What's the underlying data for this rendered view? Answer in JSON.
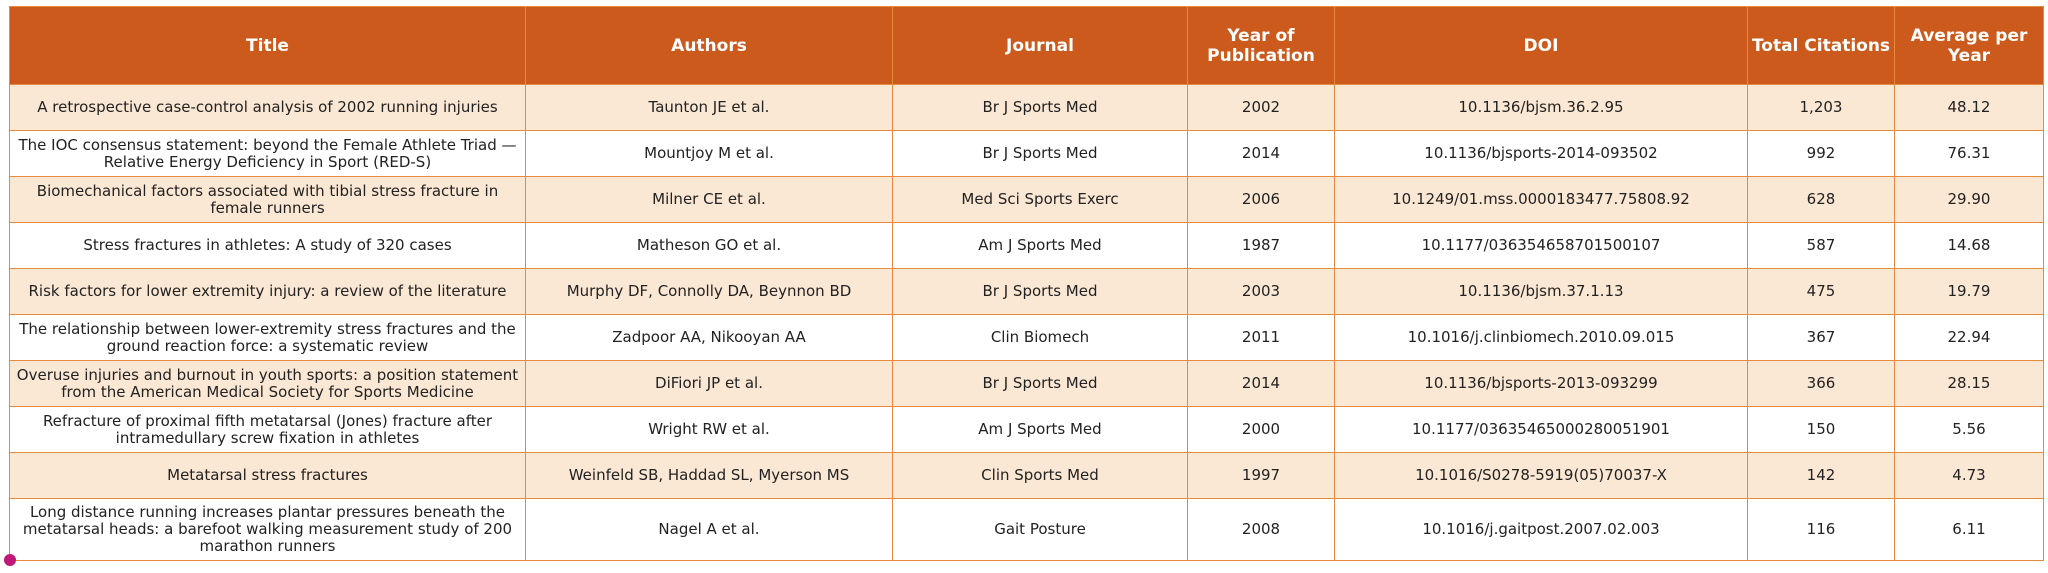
{
  "colors": {
    "header_bg": "#cc5a1c",
    "header_text": "#ffffff",
    "row_odd": "#fbe8d4",
    "row_even": "#ffffff",
    "border": "#e88a3c"
  },
  "chart_data": {
    "type": "table",
    "columns": [
      "Title",
      "Authors",
      "Journal",
      "Year of Publication",
      "DOI",
      "Total Citations",
      "Average per Year"
    ],
    "rows": [
      [
        "A retrospective case-control analysis of 2002 running injuries",
        "Taunton JE et al.",
        "Br J Sports Med",
        "2002",
        "10.1136/bjsm.36.2.95",
        "1,203",
        "48.12"
      ],
      [
        "The IOC consensus statement: beyond the Female Athlete Triad — Relative Energy Deficiency in Sport (RED-S)",
        "Mountjoy M et al.",
        "Br J Sports Med",
        "2014",
        "10.1136/bjsports-2014-093502",
        "992",
        "76.31"
      ],
      [
        "Biomechanical factors associated with tibial stress fracture in female runners",
        "Milner CE et al.",
        "Med Sci Sports Exerc",
        "2006",
        "10.1249/01.mss.0000183477.75808.92",
        "628",
        "29.90"
      ],
      [
        "Stress fractures in athletes: A study of 320 cases",
        "Matheson GO et al.",
        "Am J Sports Med",
        "1987",
        "10.1177/036354658701500107",
        "587",
        "14.68"
      ],
      [
        "Risk factors for lower extremity injury: a review of the literature",
        "Murphy DF, Connolly DA, Beynnon BD",
        "Br J Sports Med",
        "2003",
        "10.1136/bjsm.37.1.13",
        "475",
        "19.79"
      ],
      [
        "The relationship between lower-extremity stress fractures and the ground reaction force: a systematic review",
        "Zadpoor AA, Nikooyan AA",
        "Clin Biomech",
        "2011",
        "10.1016/j.clinbiomech.2010.09.015",
        "367",
        "22.94"
      ],
      [
        "Overuse injuries and burnout in youth sports: a position statement from the American Medical Society for Sports Medicine",
        "DiFiori JP et al.",
        "Br J Sports Med",
        "2014",
        "10.1136/bjsports-2013-093299",
        "366",
        "28.15"
      ],
      [
        "Refracture of proximal fifth metatarsal (Jones) fracture after intramedullary screw fixation in athletes",
        "Wright RW et al.",
        "Am J Sports Med",
        "2000",
        "10.1177/03635465000280051901",
        "150",
        "5.56"
      ],
      [
        "Metatarsal stress fractures",
        "Weinfeld SB, Haddad SL, Myerson MS",
        "Clin Sports Med",
        "1997",
        "10.1016/S0278-5919(05)70037-X",
        "142",
        "4.73"
      ],
      [
        "Long distance running increases plantar pressures beneath the metatarsal heads: a barefoot walking measurement study of 200 marathon runners",
        "Nagel A et al.",
        "Gait Posture",
        "2008",
        "10.1016/j.gaitpost.2007.02.003",
        "116",
        "6.11"
      ]
    ]
  }
}
